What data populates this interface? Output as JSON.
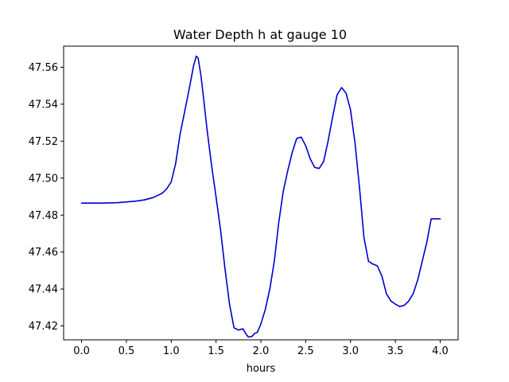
{
  "chart_data": {
    "type": "line",
    "title": "Water Depth h at gauge 10",
    "xlabel": "hours",
    "ylabel": "",
    "xlim": [
      -0.2,
      4.2
    ],
    "ylim": [
      47.4125,
      47.5714
    ],
    "xticks": [
      0.0,
      0.5,
      1.0,
      1.5,
      2.0,
      2.5,
      3.0,
      3.5,
      4.0
    ],
    "xtick_labels": [
      "0.0",
      "0.5",
      "1.0",
      "1.5",
      "2.0",
      "2.5",
      "3.0",
      "3.5",
      "4.0"
    ],
    "yticks": [
      47.42,
      47.44,
      47.46,
      47.48,
      47.5,
      47.52,
      47.54,
      47.56
    ],
    "ytick_labels": [
      "47.42",
      "47.44",
      "47.46",
      "47.48",
      "47.50",
      "47.52",
      "47.54",
      "47.56"
    ],
    "grid": false,
    "series": [
      {
        "name": "",
        "color": "#0000cc",
        "x": [
          0.0,
          0.2,
          0.4,
          0.6,
          0.7,
          0.8,
          0.9,
          0.95,
          1.0,
          1.05,
          1.1,
          1.15,
          1.2,
          1.25,
          1.28,
          1.3,
          1.33,
          1.35,
          1.4,
          1.45,
          1.5,
          1.55,
          1.6,
          1.65,
          1.7,
          1.75,
          1.8,
          1.83,
          1.86,
          1.9,
          1.93,
          1.96,
          2.0,
          2.05,
          2.1,
          2.15,
          2.2,
          2.25,
          2.3,
          2.35,
          2.4,
          2.45,
          2.5,
          2.55,
          2.6,
          2.65,
          2.7,
          2.75,
          2.8,
          2.85,
          2.9,
          2.95,
          3.0,
          3.05,
          3.1,
          3.15,
          3.2,
          3.25,
          3.3,
          3.35,
          3.4,
          3.45,
          3.5,
          3.55,
          3.6,
          3.65,
          3.7,
          3.75,
          3.8,
          3.85,
          3.9,
          3.95,
          4.0
        ],
        "y": [
          47.4865,
          47.4865,
          47.4867,
          47.4875,
          47.4882,
          47.4895,
          47.4918,
          47.4942,
          47.498,
          47.508,
          47.524,
          47.536,
          47.548,
          47.561,
          47.566,
          47.565,
          47.556,
          47.548,
          47.526,
          47.507,
          47.49,
          47.472,
          47.451,
          47.432,
          47.419,
          47.4178,
          47.4185,
          47.416,
          47.414,
          47.4143,
          47.416,
          47.4165,
          47.421,
          47.429,
          47.44,
          47.455,
          47.476,
          47.493,
          47.504,
          47.514,
          47.5215,
          47.5222,
          47.5175,
          47.5105,
          47.5058,
          47.5052,
          47.509,
          47.52,
          47.533,
          47.545,
          47.549,
          47.546,
          47.537,
          47.519,
          47.495,
          47.468,
          47.455,
          47.4535,
          47.4525,
          47.447,
          47.4375,
          47.4335,
          47.4318,
          47.4305,
          47.4312,
          47.4335,
          47.4375,
          47.445,
          47.455,
          47.465,
          47.478,
          47.478,
          47.478
        ]
      }
    ]
  }
}
